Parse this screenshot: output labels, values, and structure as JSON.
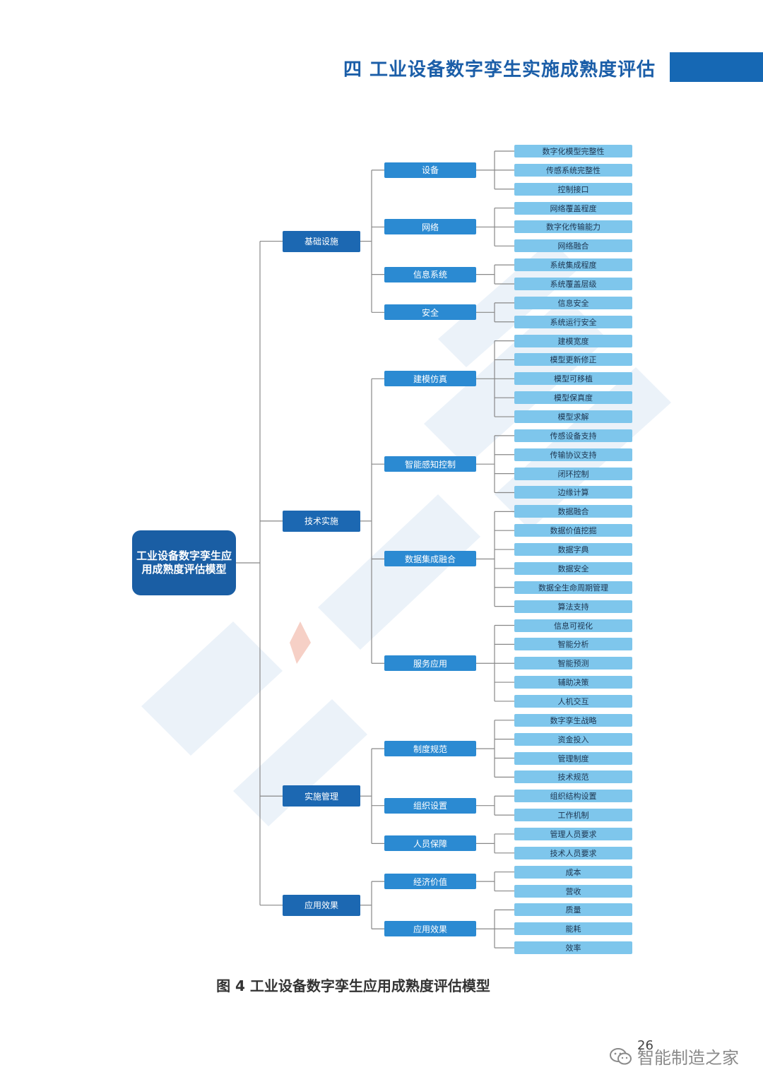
{
  "header": {
    "title": "四  工业设备数字孪生实施成熟度评估"
  },
  "diagram": {
    "root": "工业设备数字孪生应用成熟度评估模型",
    "l1": [
      {
        "label": "基础设施",
        "l2": [
          {
            "label": "设备",
            "l3": [
              "数字化模型完整性",
              "传感系统完整性",
              "控制接口"
            ]
          },
          {
            "label": "网络",
            "l3": [
              "网络覆盖程度",
              "数字化传输能力",
              "网络融合"
            ]
          },
          {
            "label": "信息系统",
            "l3": [
              "系统集成程度",
              "系统覆盖层级"
            ]
          },
          {
            "label": "安全",
            "l3": [
              "信息安全",
              "系统运行安全"
            ]
          }
        ]
      },
      {
        "label": "技术实施",
        "l2": [
          {
            "label": "建模仿真",
            "l3": [
              "建模宽度",
              "模型更新修正",
              "模型可移植",
              "模型保真度",
              "模型求解"
            ]
          },
          {
            "label": "智能感知控制",
            "l3": [
              "传感设备支持",
              "传输协议支持",
              "闭环控制",
              "边缘计算"
            ]
          },
          {
            "label": "数据集成融合",
            "l3": [
              "数据融合",
              "数据价值挖掘",
              "数据字典",
              "数据安全",
              "数据全生命周期管理",
              "算法支持"
            ]
          },
          {
            "label": "服务应用",
            "l3": [
              "信息可视化",
              "智能分析",
              "智能预测",
              "辅助决策",
              "人机交互"
            ]
          }
        ]
      },
      {
        "label": "实施管理",
        "l2": [
          {
            "label": "制度规范",
            "l3": [
              "数字孪生战略",
              "资金投入",
              "管理制度",
              "技术规范"
            ]
          },
          {
            "label": "组织设置",
            "l3": [
              "组织结构设置",
              "工作机制"
            ]
          },
          {
            "label": "人员保障",
            "l3": [
              "管理人员要求",
              "技术人员要求"
            ]
          }
        ]
      },
      {
        "label": "应用效果",
        "l2": [
          {
            "label": "经济价值",
            "l3": [
              "成本",
              "营收"
            ]
          },
          {
            "label": "应用效果",
            "l3": [
              "质量",
              "能耗",
              "效率"
            ]
          }
        ]
      }
    ]
  },
  "caption": "图 4 工业设备数字孪生应用成熟度评估模型",
  "page_number": "26",
  "footer": {
    "brand": "智能制造之家",
    "icon": "wechat-icon"
  },
  "colors": {
    "root": "#1a5ea4",
    "level1": "#1c68b2",
    "level2": "#2b8ad2",
    "level3": "#7ec6ec",
    "line": "#888888"
  }
}
